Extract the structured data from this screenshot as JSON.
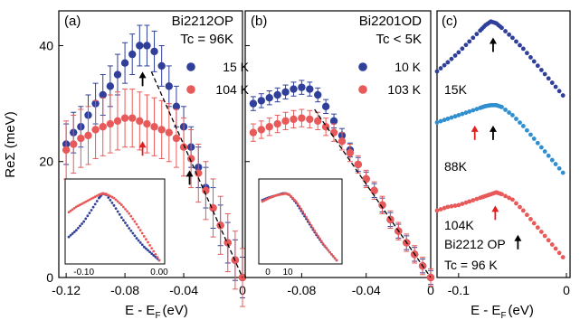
{
  "figure": {
    "ylabel": "ReΣ (meV)",
    "xlabel": "E - E",
    "xlabel_sub": "F",
    "xlabel_unit": "(eV)"
  },
  "colors": {
    "blue": "#2f3f9a",
    "red": "#e85a5a",
    "lightblue": "#2f8fd0",
    "redarrow": "#e02020",
    "fit": "#000000"
  },
  "chart_data": [
    {
      "id": "a",
      "type": "scatter",
      "panel_label": "(a)",
      "sample": "Bi2212OP",
      "tc": "Tc = 96K",
      "xlim": [
        -0.125,
        0
      ],
      "ylim": [
        0,
        46
      ],
      "yticks": [
        "40",
        "20",
        "0"
      ],
      "xticks": [
        "-0.12",
        "-0.08",
        "-0.04",
        "0"
      ],
      "error_bars": true,
      "legend_position": "right",
      "series": [
        {
          "name": "15 K",
          "color": "blue",
          "error": 3.5,
          "x": [
            -0.12,
            -0.115,
            -0.11,
            -0.105,
            -0.1,
            -0.095,
            -0.09,
            -0.085,
            -0.08,
            -0.075,
            -0.07,
            -0.065,
            -0.06,
            -0.055,
            -0.05,
            -0.045,
            -0.04,
            -0.035,
            -0.03,
            -0.025,
            -0.02,
            -0.015,
            -0.01,
            -0.005,
            0
          ],
          "y": [
            23,
            25,
            26,
            28,
            30,
            31.5,
            33,
            35,
            37,
            38.5,
            40,
            40,
            39,
            36.5,
            33,
            29.5,
            26,
            22.5,
            19,
            15.5,
            12,
            9,
            6,
            3,
            0
          ]
        },
        {
          "name": "104 K",
          "color": "red",
          "error": 5,
          "x": [
            -0.12,
            -0.115,
            -0.11,
            -0.105,
            -0.1,
            -0.095,
            -0.09,
            -0.085,
            -0.08,
            -0.075,
            -0.07,
            -0.065,
            -0.06,
            -0.055,
            -0.05,
            -0.045,
            -0.04,
            -0.035,
            -0.03,
            -0.025,
            -0.02,
            -0.015,
            -0.01,
            -0.005,
            0
          ],
          "y": [
            22,
            23,
            24,
            24.5,
            25.5,
            26,
            26.5,
            27,
            27.5,
            27.5,
            27,
            26.5,
            26,
            25.5,
            25,
            24,
            22.5,
            20.5,
            18,
            15,
            12,
            9,
            6,
            3,
            0
          ]
        }
      ],
      "fit_line": {
        "x": [
          -0.062,
          0
        ],
        "y": [
          35.5,
          0
        ]
      },
      "arrows": [
        {
          "x": -0.068,
          "y": 35.5,
          "color": "fit"
        },
        {
          "x": -0.068,
          "y": 23.5,
          "color": "redarrow"
        },
        {
          "x": -0.036,
          "y": 18.5,
          "color": "fit"
        }
      ],
      "inset": {
        "xticks": [
          "-0.10",
          "0.00"
        ],
        "xlim": [
          -0.12,
          0
        ],
        "series": [
          {
            "color": "blue",
            "x": [
              -0.12,
              -0.11,
              -0.1,
              -0.09,
              -0.08,
              -0.075,
              -0.07,
              -0.06,
              -0.05,
              -0.04,
              -0.03,
              -0.02,
              -0.01,
              0
            ],
            "y": [
              0.35,
              0.45,
              0.58,
              0.75,
              0.93,
              1,
              0.98,
              0.82,
              0.64,
              0.48,
              0.33,
              0.2,
              0.1,
              0
            ]
          },
          {
            "color": "red",
            "x": [
              -0.12,
              -0.11,
              -0.1,
              -0.09,
              -0.08,
              -0.075,
              -0.07,
              -0.06,
              -0.05,
              -0.04,
              -0.03,
              -0.02,
              -0.01,
              0
            ],
            "y": [
              0.72,
              0.8,
              0.86,
              0.92,
              0.98,
              1,
              0.99,
              0.93,
              0.83,
              0.7,
              0.54,
              0.36,
              0.18,
              0
            ]
          }
        ]
      }
    },
    {
      "id": "b",
      "type": "scatter",
      "panel_label": "(b)",
      "sample": "Bi2201OD",
      "tc": "Tc < 5K",
      "xlim": [
        -0.115,
        0
      ],
      "ylim": [
        0,
        46
      ],
      "xticks": [
        "-0.08",
        "-0.04",
        "0"
      ],
      "error_bars": true,
      "legend_position": "right",
      "series": [
        {
          "name": "10 K",
          "color": "blue",
          "error": 1.2,
          "x": [
            -0.11,
            -0.105,
            -0.1,
            -0.095,
            -0.09,
            -0.085,
            -0.08,
            -0.075,
            -0.07,
            -0.065,
            -0.06,
            -0.055,
            -0.05,
            -0.045,
            -0.04,
            -0.035,
            -0.03,
            -0.025,
            -0.02,
            -0.015,
            -0.01,
            -0.005,
            0
          ],
          "y": [
            30,
            30.5,
            31,
            31.5,
            32,
            32.5,
            32.8,
            32.5,
            31.5,
            29.5,
            27,
            24.5,
            22,
            19.5,
            17,
            15,
            12.5,
            10,
            8,
            6,
            4,
            2,
            0
          ]
        },
        {
          "name": "103 K",
          "color": "red",
          "error": 1.5,
          "x": [
            -0.11,
            -0.105,
            -0.1,
            -0.095,
            -0.09,
            -0.085,
            -0.08,
            -0.075,
            -0.07,
            -0.065,
            -0.06,
            -0.055,
            -0.05,
            -0.045,
            -0.04,
            -0.035,
            -0.03,
            -0.025,
            -0.02,
            -0.015,
            -0.01,
            -0.005,
            0
          ],
          "y": [
            25,
            25.5,
            26,
            26.5,
            27,
            27.3,
            27.5,
            27.3,
            27,
            26,
            25,
            23.5,
            21.5,
            19.5,
            17,
            15,
            12.5,
            10,
            8,
            6,
            4,
            2,
            0
          ]
        }
      ],
      "fit_line": {
        "x": [
          -0.072,
          0
        ],
        "y": [
          29,
          0
        ]
      },
      "inset": {
        "xticks": [
          "0",
          "10"
        ],
        "xlim": [
          -0.11,
          0
        ],
        "series": [
          {
            "color": "blue",
            "x": [
              -0.11,
              -0.1,
              -0.09,
              -0.08,
              -0.075,
              -0.07,
              -0.06,
              -0.05,
              -0.04,
              -0.03,
              -0.02,
              -0.01,
              0
            ],
            "y": [
              0.9,
              0.94,
              0.97,
              1,
              1,
              0.98,
              0.86,
              0.7,
              0.54,
              0.38,
              0.24,
              0.12,
              0
            ]
          },
          {
            "color": "red",
            "x": [
              -0.11,
              -0.1,
              -0.09,
              -0.08,
              -0.075,
              -0.07,
              -0.06,
              -0.05,
              -0.04,
              -0.03,
              -0.02,
              -0.01,
              0
            ],
            "y": [
              0.88,
              0.93,
              0.97,
              0.99,
              1,
              0.98,
              0.88,
              0.73,
              0.56,
              0.4,
              0.25,
              0.12,
              0
            ]
          }
        ]
      }
    },
    {
      "id": "c",
      "type": "scatter",
      "panel_label": "(c)",
      "xlim": [
        -0.12,
        0
      ],
      "ylim": [
        0,
        1
      ],
      "xticks": [
        "-0.1",
        "0"
      ],
      "xlabel_unit": "(eV)",
      "series": [
        {
          "name": "15K",
          "color": "blue",
          "offset": 0.62,
          "x": [
            -0.12,
            -0.11,
            -0.1,
            -0.09,
            -0.08,
            -0.075,
            -0.07,
            -0.065,
            -0.06,
            -0.05,
            -0.04,
            -0.03,
            -0.02,
            -0.01,
            0
          ],
          "y": [
            0.45,
            0.55,
            0.66,
            0.78,
            0.9,
            0.96,
            1,
            0.98,
            0.93,
            0.82,
            0.7,
            0.56,
            0.42,
            0.28,
            0.14
          ]
        },
        {
          "name": "88K",
          "color": "lightblue",
          "offset": 0.33,
          "x": [
            -0.12,
            -0.11,
            -0.1,
            -0.09,
            -0.08,
            -0.075,
            -0.07,
            -0.065,
            -0.06,
            -0.05,
            -0.04,
            -0.03,
            -0.02,
            -0.01,
            0
          ],
          "y": [
            0.74,
            0.78,
            0.82,
            0.86,
            0.9,
            0.92,
            0.93,
            0.93,
            0.91,
            0.82,
            0.7,
            0.56,
            0.42,
            0.28,
            0.14
          ]
        },
        {
          "name": "104K",
          "color": "red",
          "offset": 0.02,
          "x": [
            -0.12,
            -0.11,
            -0.1,
            -0.09,
            -0.08,
            -0.075,
            -0.07,
            -0.065,
            -0.06,
            -0.05,
            -0.04,
            -0.03,
            -0.02,
            -0.01,
            0
          ],
          "y": [
            0.68,
            0.72,
            0.74,
            0.78,
            0.82,
            0.84,
            0.86,
            0.88,
            0.86,
            0.8,
            0.68,
            0.54,
            0.4,
            0.26,
            0.12
          ]
        }
      ],
      "arrows": [
        {
          "x": -0.068,
          "y": 0.9,
          "color": "fit"
        },
        {
          "x": -0.085,
          "y": 0.57,
          "color": "redarrow"
        },
        {
          "x": -0.068,
          "y": 0.57,
          "color": "fit"
        },
        {
          "x": -0.066,
          "y": 0.27,
          "color": "redarrow"
        },
        {
          "x": -0.045,
          "y": 0.16,
          "color": "fit"
        }
      ],
      "sample": "Bi2212 OP",
      "tc": "Tc = 96 K"
    }
  ]
}
